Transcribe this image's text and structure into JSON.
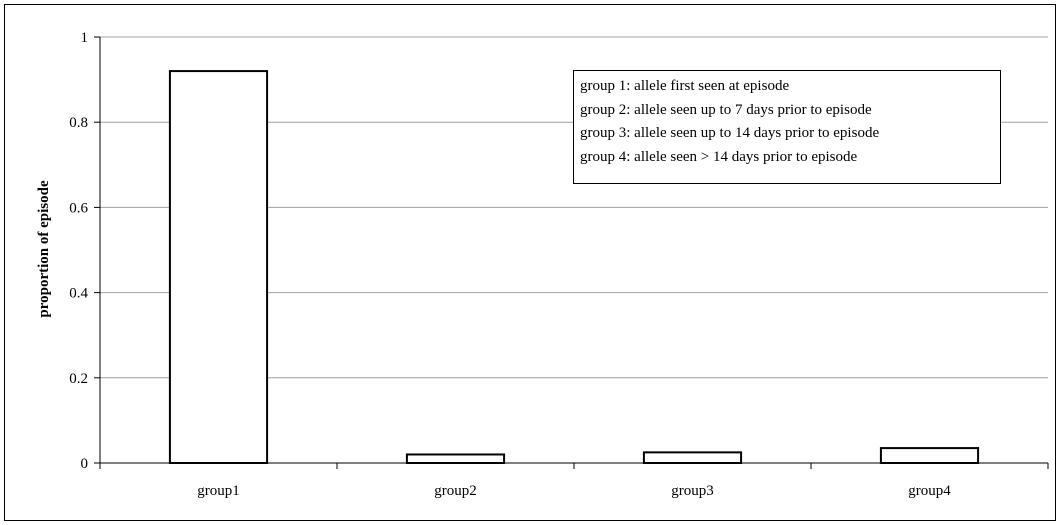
{
  "chart_data": {
    "type": "bar",
    "categories": [
      "group1",
      "group2",
      "group3",
      "group4"
    ],
    "values": [
      0.92,
      0.02,
      0.025,
      0.035
    ],
    "ylabel": "proportion of episode",
    "xlabel": "",
    "ylim": [
      0,
      1
    ],
    "yticks": [
      "0",
      "0.2",
      "0.4",
      "0.6",
      "0.8",
      "1"
    ],
    "grid": true,
    "bar_fill": "#ffffff",
    "bar_stroke": "#000000",
    "gridline_color": "#a0a0a0"
  },
  "legend": {
    "lines": [
      "group 1: allele first seen at episode",
      "group 2: allele seen up to 7 days prior to episode",
      "group 3: allele seen up to 14 days prior to episode",
      "group 4: allele seen > 14 days prior to episode"
    ]
  }
}
